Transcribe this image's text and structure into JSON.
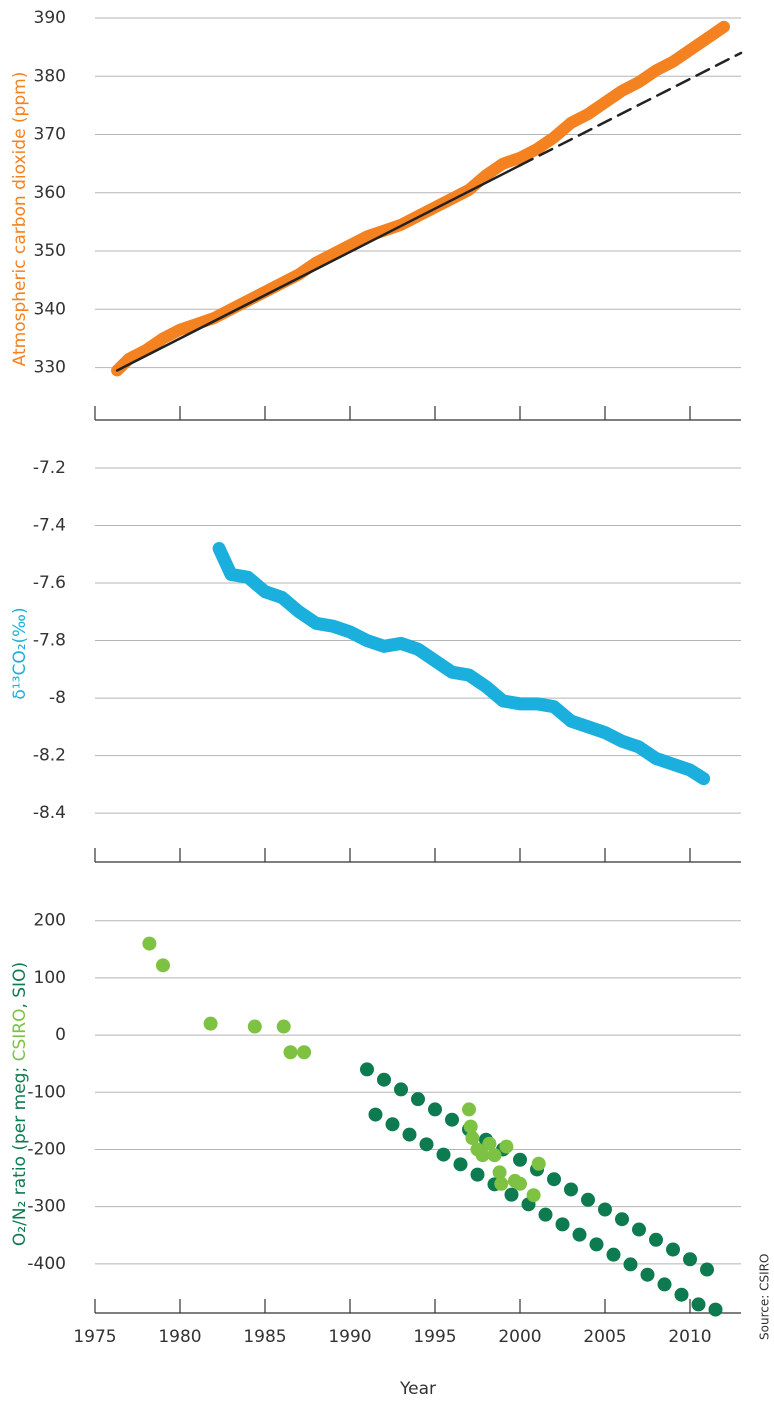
{
  "source": "Source: CSIRO",
  "chart_data": [
    {
      "type": "line",
      "ylabel": "Atmospheric carbon dioxide (ppm)",
      "ylabel_color": "#f58220",
      "xlim": [
        1975,
        2013
      ],
      "ylim": [
        321,
        390
      ],
      "xticks": [
        1975,
        1980,
        1985,
        1990,
        1995,
        2000,
        2005,
        2010
      ],
      "xtick_labels": false,
      "yticks": [
        330,
        340,
        350,
        360,
        370,
        380,
        390
      ],
      "grid": true,
      "series": [
        {
          "color": "#f58220",
          "linewidth": 12,
          "x": [
            1976.3,
            1977,
            1978,
            1979,
            1980,
            1981,
            1982,
            1983,
            1984,
            1985,
            1986,
            1987,
            1988,
            1989,
            1990,
            1991,
            1992,
            1993,
            1994,
            1995,
            1996,
            1997,
            1998,
            1999,
            2000,
            2001,
            2002,
            2003,
            2004,
            2005,
            2006,
            2007,
            2008,
            2009,
            2010,
            2011,
            2012
          ],
          "values": [
            329.5,
            331.5,
            333,
            335,
            336.5,
            337.5,
            338.5,
            340,
            341.5,
            343,
            344.5,
            346,
            348,
            349.5,
            351,
            352.5,
            353.5,
            354.5,
            356,
            357.5,
            359,
            360.5,
            363,
            365,
            366,
            367.5,
            369.5,
            372,
            373.5,
            375.5,
            377.5,
            379,
            381,
            382.5,
            384.5,
            386.5,
            388.5
          ]
        },
        {
          "color": "#222222",
          "linewidth": 2.5,
          "line_style": "solid",
          "x": [
            1976.3,
            2000
          ],
          "values": [
            329.5,
            364.7
          ]
        },
        {
          "color": "#222222",
          "linewidth": 2.5,
          "line_style": "dashed",
          "x": [
            2000,
            2013
          ],
          "values": [
            364.7,
            384
          ]
        }
      ]
    },
    {
      "type": "line",
      "ylabel": "δ¹³CO₂(‰)",
      "ylabel_color": "#1aafdc",
      "xlim": [
        1975,
        2013
      ],
      "ylim": [
        -8.57,
        -7.12
      ],
      "xticks": [
        1975,
        1980,
        1985,
        1990,
        1995,
        2000,
        2005,
        2010
      ],
      "xtick_labels": false,
      "yticks": [
        -8.4,
        -8.2,
        -8.0,
        -7.8,
        -7.6,
        -7.4,
        -7.2
      ],
      "grid": true,
      "series": [
        {
          "color": "#1aafdc",
          "linewidth": 13,
          "x": [
            1982.3,
            1983,
            1984,
            1985,
            1986,
            1987,
            1988,
            1989,
            1990,
            1991,
            1992,
            1993,
            1994,
            1995,
            1996,
            1997,
            1998,
            1999,
            2000,
            2001,
            2002,
            2003,
            2004,
            2005,
            2006,
            2007,
            2008,
            2009,
            2010,
            2010.8
          ],
          "values": [
            -7.48,
            -7.57,
            -7.58,
            -7.63,
            -7.65,
            -7.7,
            -7.74,
            -7.75,
            -7.77,
            -7.8,
            -7.82,
            -7.81,
            -7.83,
            -7.87,
            -7.91,
            -7.92,
            -7.96,
            -8.01,
            -8.02,
            -8.02,
            -8.03,
            -8.08,
            -8.1,
            -8.12,
            -8.15,
            -8.17,
            -8.21,
            -8.23,
            -8.25,
            -8.28
          ]
        }
      ]
    },
    {
      "type": "scatter",
      "ylabel_parts": [
        {
          "text": "O₂/N₂ ratio (per meg; ",
          "color": "#0e7a4f"
        },
        {
          "text": "CSIRO",
          "color": "#7dc242"
        },
        {
          "text": ", SIO)",
          "color": "#0e7a4f"
        }
      ],
      "xlabel": "Year",
      "xlim": [
        1975,
        2013
      ],
      "ylim": [
        -486,
        245
      ],
      "xticks": [
        1975,
        1980,
        1985,
        1990,
        1995,
        2000,
        2005,
        2010
      ],
      "xtick_labels": true,
      "yticks": [
        -400,
        -300,
        -200,
        -100,
        0,
        100,
        200
      ],
      "grid": true,
      "series": [
        {
          "color": "#0e7a4f",
          "x": [
            1991,
            1991.5,
            1992,
            1992.5,
            1993,
            1993.5,
            1994,
            1994.5,
            1995,
            1995.5,
            1996,
            1996.5,
            1997,
            1997.5,
            1998,
            1998.5,
            1999,
            1999.5,
            2000,
            2000.5,
            2001,
            2001.5,
            2002,
            2002.5,
            2003,
            2003.5,
            2004,
            2004.5,
            2005,
            2005.5,
            2006,
            2006.5,
            2007,
            2007.5,
            2008,
            2008.5,
            2009,
            2009.5,
            2010,
            2010.5,
            2011,
            2011.5
          ],
          "values": [
            -60,
            -139,
            -78,
            -156,
            -95,
            -174,
            -112,
            -191,
            -130,
            -209,
            -148,
            -226,
            -165,
            -244,
            -183,
            -261,
            -200,
            -279,
            -218,
            -296,
            -235,
            -314,
            -252,
            -331,
            -270,
            -349,
            -288,
            -366,
            -305,
            -384,
            -322,
            -401,
            -340,
            -419,
            -358,
            -436,
            -375,
            -454,
            -392,
            -471,
            -410,
            -480
          ]
        },
        {
          "color": "#7dc242",
          "x": [
            1978.2,
            1979,
            1981.8,
            1984.4,
            1986.1,
            1986.5,
            1987.3,
            1997,
            1997.1,
            1997.2,
            1997.5,
            1997.8,
            1998.2,
            1998.5,
            1998.8,
            1998.9,
            1999.2,
            1999.7,
            2000,
            2000.8,
            2001.1
          ],
          "values": [
            160,
            122,
            20,
            15,
            15,
            -30,
            -30,
            -130,
            -160,
            -180,
            -200,
            -210,
            -190,
            -210,
            -240,
            -260,
            -195,
            -255,
            -260,
            -280,
            -225
          ]
        }
      ]
    }
  ]
}
